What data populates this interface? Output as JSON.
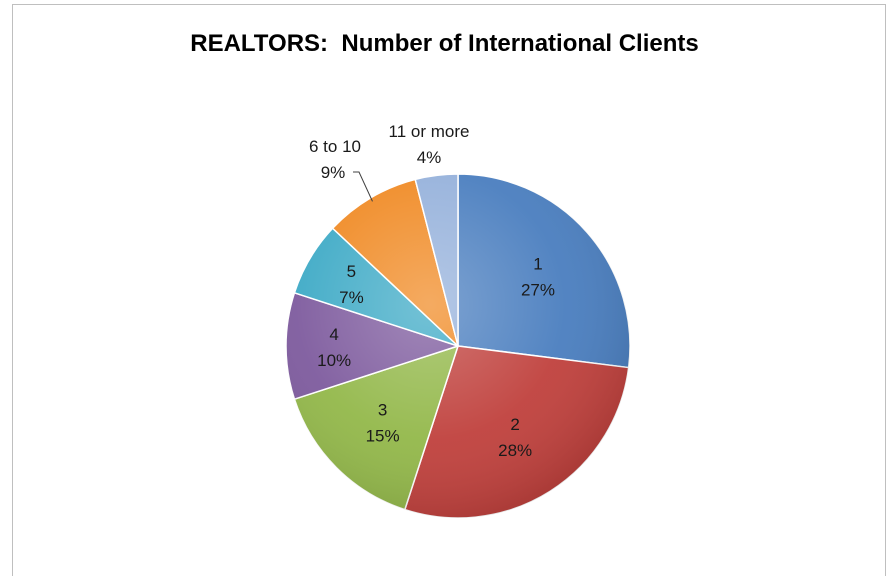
{
  "chart_data": {
    "type": "pie",
    "title": "REALTORS:  Number of International Clients",
    "slices": [
      {
        "label": "1",
        "value": 27,
        "value_label": "27%",
        "color": "#4a7ebf",
        "label_placement": "inside"
      },
      {
        "label": "2",
        "value": 28,
        "value_label": "28%",
        "color": "#c0413d",
        "label_placement": "inside"
      },
      {
        "label": "3",
        "value": 15,
        "value_label": "15%",
        "color": "#93b84a",
        "label_placement": "inside"
      },
      {
        "label": "4",
        "value": 10,
        "value_label": "10%",
        "color": "#7e5b9e",
        "label_placement": "inside"
      },
      {
        "label": "5",
        "value": 7,
        "value_label": "7%",
        "color": "#3eaac6",
        "label_placement": "inside"
      },
      {
        "label": "6 to 10",
        "value": 9,
        "value_label": "9%",
        "color": "#f08a24",
        "label_placement": "outside"
      },
      {
        "label": "11 or more",
        "value": 4,
        "value_label": "4%",
        "color": "#95b1db",
        "label_placement": "outside"
      }
    ],
    "start": "12 o'clock",
    "direction": "clockwise",
    "legend": "none"
  }
}
